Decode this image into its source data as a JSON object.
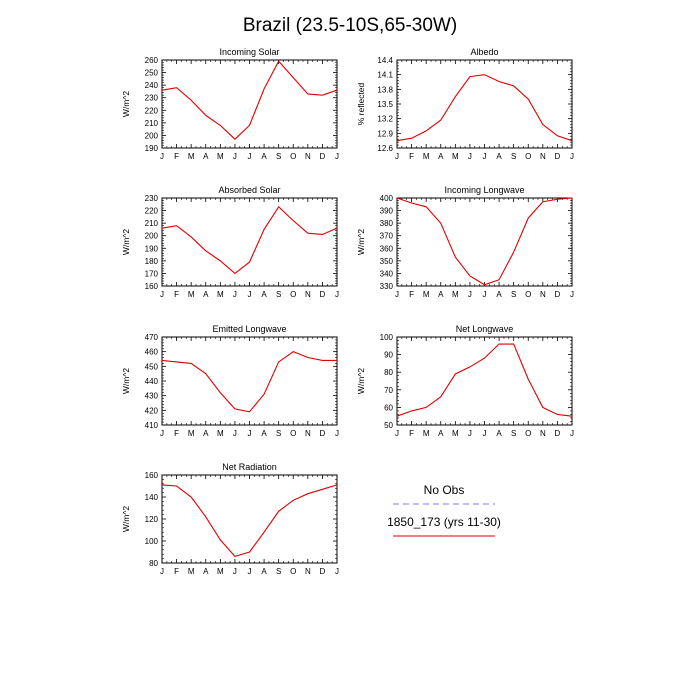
{
  "figure": {
    "title": "Brazil (23.5-10S,65-30W)"
  },
  "legend": {
    "entries": [
      {
        "name": "No Obs",
        "color": "#7b7bf0",
        "dash": "dashed"
      },
      {
        "name": "1850_173 (yrs 11-30)",
        "color": "#e00000",
        "dash": "solid"
      }
    ]
  },
  "chart_data": [
    {
      "type": "line",
      "title": "Incoming Solar",
      "ylabel": "W/m^2",
      "ylim": [
        190,
        260
      ],
      "yticks": [
        190,
        200,
        210,
        220,
        230,
        240,
        250,
        260
      ],
      "categories": [
        "J",
        "F",
        "M",
        "A",
        "M",
        "J",
        "J",
        "A",
        "S",
        "O",
        "N",
        "D",
        "J"
      ],
      "series": [
        {
          "color": "#e00000",
          "values": [
            236,
            238,
            228,
            216,
            208,
            197,
            208,
            237,
            259,
            246,
            233,
            232,
            236
          ]
        }
      ]
    },
    {
      "type": "line",
      "title": "Albedo",
      "ylabel": "% reflected",
      "ylim": [
        12.6,
        14.4
      ],
      "yticks": [
        12.6,
        12.9,
        13.2,
        13.5,
        13.8,
        14.1,
        14.4
      ],
      "ytick_labels": [
        "12.6",
        "12.9",
        "13.2",
        "13.5",
        "13.8",
        "14.1",
        "14.4"
      ],
      "categories": [
        "J",
        "F",
        "M",
        "A",
        "M",
        "J",
        "J",
        "A",
        "S",
        "O",
        "N",
        "D",
        "J"
      ],
      "series": [
        {
          "color": "#e00000",
          "values": [
            12.75,
            12.8,
            12.95,
            13.17,
            13.65,
            14.06,
            14.1,
            13.96,
            13.87,
            13.6,
            13.08,
            12.85,
            12.75
          ]
        }
      ]
    },
    {
      "type": "line",
      "title": "Absorbed Solar",
      "ylabel": "W/m^2",
      "ylim": [
        160,
        230
      ],
      "yticks": [
        160,
        170,
        180,
        190,
        200,
        210,
        220,
        230
      ],
      "categories": [
        "J",
        "F",
        "M",
        "A",
        "M",
        "J",
        "J",
        "A",
        "S",
        "O",
        "N",
        "D",
        "J"
      ],
      "series": [
        {
          "color": "#e00000",
          "values": [
            206,
            208,
            199,
            188,
            180,
            170,
            179,
            205,
            223,
            212,
            202,
            201,
            206
          ]
        }
      ]
    },
    {
      "type": "line",
      "title": "Incoming Longwave",
      "ylabel": "W/m^2",
      "ylim": [
        330,
        400
      ],
      "yticks": [
        330,
        340,
        350,
        360,
        370,
        380,
        390,
        400
      ],
      "categories": [
        "J",
        "F",
        "M",
        "A",
        "M",
        "J",
        "J",
        "A",
        "S",
        "O",
        "N",
        "D",
        "J"
      ],
      "series": [
        {
          "color": "#e00000",
          "values": [
            400,
            396,
            393,
            380,
            353,
            338,
            331,
            335,
            357,
            384,
            397,
            399,
            400
          ]
        }
      ]
    },
    {
      "type": "line",
      "title": "Emitted Longwave",
      "ylabel": "W/m^2",
      "ylim": [
        410,
        470
      ],
      "yticks": [
        410,
        420,
        430,
        440,
        450,
        460,
        470
      ],
      "categories": [
        "J",
        "F",
        "M",
        "A",
        "M",
        "J",
        "J",
        "A",
        "S",
        "O",
        "N",
        "D",
        "J"
      ],
      "series": [
        {
          "color": "#e00000",
          "values": [
            454,
            453,
            452,
            445,
            432,
            421,
            419,
            431,
            453,
            460,
            456,
            454,
            454
          ]
        }
      ]
    },
    {
      "type": "line",
      "title": "Net Longwave",
      "ylabel": "W/m^2",
      "ylim": [
        50,
        100
      ],
      "yticks": [
        50,
        60,
        70,
        80,
        90,
        100
      ],
      "categories": [
        "J",
        "F",
        "M",
        "A",
        "M",
        "J",
        "J",
        "A",
        "S",
        "O",
        "N",
        "D",
        "J"
      ],
      "series": [
        {
          "color": "#e00000",
          "values": [
            55,
            58,
            60,
            66,
            79,
            83,
            88,
            96,
            96,
            76,
            60,
            56,
            55
          ]
        }
      ]
    },
    {
      "type": "line",
      "title": "Net Radiation",
      "ylabel": "W/m^2",
      "ylim": [
        80,
        160
      ],
      "yticks": [
        80,
        100,
        120,
        140,
        160
      ],
      "categories": [
        "J",
        "F",
        "M",
        "A",
        "M",
        "J",
        "J",
        "A",
        "S",
        "O",
        "N",
        "D",
        "J"
      ],
      "series": [
        {
          "color": "#e00000",
          "values": [
            151,
            150,
            140,
            122,
            101,
            86,
            90,
            108,
            127,
            137,
            143,
            147,
            151
          ]
        }
      ]
    }
  ]
}
